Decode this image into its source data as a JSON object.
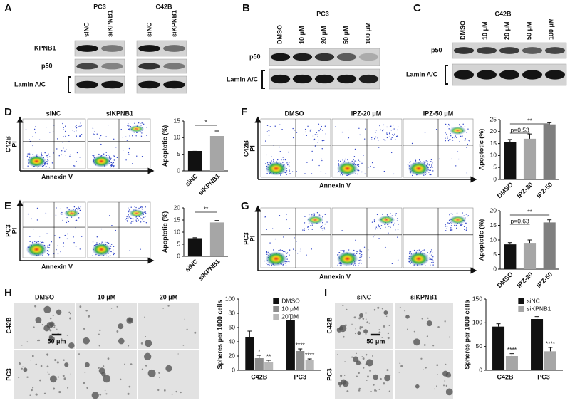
{
  "figure": {
    "letters": [
      "A",
      "B",
      "C",
      "D",
      "E",
      "F",
      "G",
      "H",
      "I"
    ],
    "blot_a": {
      "cell_lines": [
        "PC3",
        "C42B"
      ],
      "lanes": [
        "siNC",
        "siKPNB1",
        "siNC",
        "siKPNB1"
      ],
      "rows": [
        "KPNB1",
        "p50",
        "Lamin A/C"
      ]
    },
    "blot_b": {
      "cell_line": "PC3",
      "lanes": [
        "DMSO",
        "10 μM",
        "20 μM",
        "50 μM",
        "100 μM"
      ],
      "rows": [
        "p50",
        "Lamin A/C"
      ]
    },
    "blot_c": {
      "cell_line": "C42B",
      "lanes": [
        "DMSO",
        "10 μM",
        "20 μM",
        "50 μM",
        "100 μM"
      ],
      "rows": [
        "p50",
        "Lamin A/C"
      ]
    },
    "flow_d": {
      "conditions": [
        "siNC",
        "siKPNB1"
      ],
      "cell_line": "C42B",
      "y_label": "PI",
      "x_label": "Annexin V"
    },
    "flow_e": {
      "cell_line": "PC3",
      "y_label": "PI",
      "x_label": "Annexin V"
    },
    "flow_f": {
      "conditions": [
        "DMSO",
        "IPZ-20 μM",
        "IPZ-50 μM"
      ],
      "cell_line": "C42B",
      "y_label": "PI",
      "x_label": "Annexin V"
    },
    "flow_g": {
      "cell_line": "PC3",
      "y_label": "PI",
      "x_label": "Annexin V"
    },
    "images_h": {
      "conditions": [
        "DMSO",
        "10 μM",
        "20 μM"
      ],
      "rows": [
        "C42B",
        "PC3"
      ],
      "scale_bar": "50 μm"
    },
    "images_i": {
      "conditions": [
        "siNC",
        "siKPNB1"
      ],
      "rows": [
        "C42B",
        "PC3"
      ],
      "scale_bar": "50 μm"
    }
  },
  "chart_data": [
    {
      "type": "bar",
      "y_label": "Apoptotic (%)",
      "categories": [
        "siNC",
        "siKPNB1"
      ],
      "values": [
        6,
        10.5
      ],
      "errors": [
        0.3,
        1.5
      ],
      "colors": [
        "#111111",
        "#a6a6a6"
      ],
      "ylim": [
        0,
        15
      ],
      "yticks": [
        0,
        5,
        10,
        15
      ],
      "annotations": [
        "*"
      ]
    },
    {
      "type": "bar",
      "y_label": "Apoptotic (%)",
      "categories": [
        "siNC",
        "siKPNB1"
      ],
      "values": [
        7.5,
        14
      ],
      "errors": [
        0.2,
        0.8
      ],
      "colors": [
        "#111111",
        "#a6a6a6"
      ],
      "ylim": [
        0,
        20
      ],
      "yticks": [
        0,
        5,
        10,
        15,
        20
      ],
      "annotations": [
        "**"
      ]
    },
    {
      "type": "bar",
      "y_label": "Apoptotic (%)",
      "categories": [
        "DMSO",
        "IPZ-20",
        "IPZ-50"
      ],
      "values": [
        15.5,
        17,
        23
      ],
      "errors": [
        1.2,
        2,
        0.7
      ],
      "colors": [
        "#111111",
        "#a6a6a6",
        "#7f7f7f"
      ],
      "ylim": [
        0,
        25
      ],
      "yticks": [
        0,
        5,
        10,
        15,
        20,
        25
      ],
      "annotations": [
        "p=0.53",
        "**"
      ]
    },
    {
      "type": "bar",
      "y_label": "Apoptotic (%)",
      "categories": [
        "DMSO",
        "IPZ-20",
        "IPZ-50"
      ],
      "values": [
        8.5,
        9,
        16
      ],
      "errors": [
        0.6,
        1,
        0.9
      ],
      "colors": [
        "#111111",
        "#a6a6a6",
        "#7f7f7f"
      ],
      "ylim": [
        0,
        20
      ],
      "yticks": [
        0,
        5,
        10,
        15,
        20
      ],
      "annotations": [
        "p=0.63",
        "**"
      ]
    },
    {
      "type": "bar",
      "y_label": "Spheres per 1000 cells",
      "categories": [
        "C42B",
        "PC3"
      ],
      "series": [
        {
          "name": "DMSO",
          "color": "#111111",
          "values": [
            47,
            70
          ],
          "errors": [
            8,
            8
          ]
        },
        {
          "name": "10 μM",
          "color": "#8c8c8c",
          "values": [
            17,
            27
          ],
          "errors": [
            4,
            3
          ],
          "annotations": [
            "*",
            "****"
          ]
        },
        {
          "name": "20 μM",
          "color": "#b8b8b8",
          "values": [
            11,
            14
          ],
          "errors": [
            3,
            2
          ],
          "annotations": [
            "**",
            "****"
          ]
        }
      ],
      "ylim": [
        0,
        100
      ],
      "yticks": [
        0,
        20,
        40,
        60,
        80,
        100
      ]
    },
    {
      "type": "bar",
      "y_label": "Spheres per 1000 cells",
      "categories": [
        "C42B",
        "PC3"
      ],
      "series": [
        {
          "name": "siNC",
          "color": "#111111",
          "values": [
            92,
            108
          ],
          "errors": [
            6,
            5
          ]
        },
        {
          "name": "siKPNB1",
          "color": "#a6a6a6",
          "values": [
            30,
            40
          ],
          "errors": [
            5,
            8
          ],
          "annotations": [
            "****",
            "****"
          ]
        }
      ],
      "ylim": [
        0,
        150
      ],
      "yticks": [
        0,
        50,
        100,
        150
      ]
    }
  ]
}
